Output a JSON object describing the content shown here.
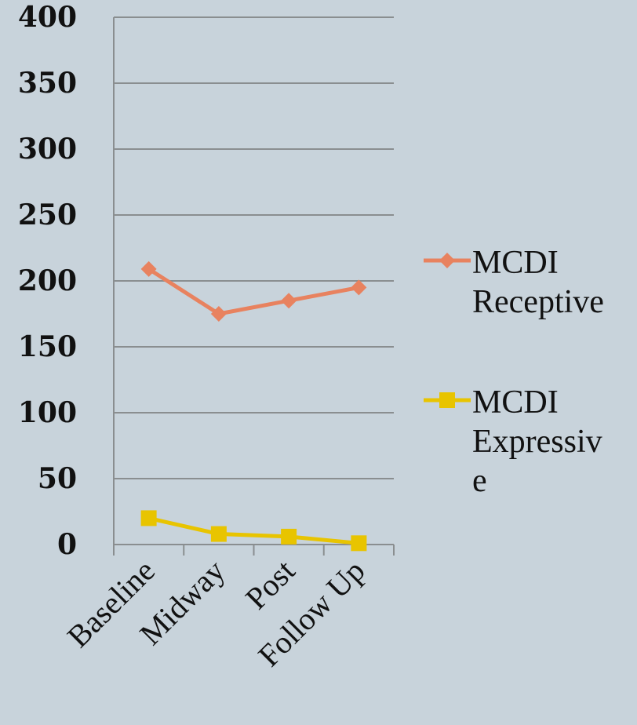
{
  "chart_data": {
    "type": "line",
    "categories": [
      "Baseline",
      "Midway",
      "Post",
      "Follow Up"
    ],
    "series": [
      {
        "name": "MCDI Receptive",
        "legend_lines": [
          "MCDI",
          "Receptive"
        ],
        "values": [
          209,
          175,
          185,
          195
        ],
        "color": "#e8825f",
        "marker": "diamond"
      },
      {
        "name": "MCDI Expressive",
        "legend_lines": [
          "MCDI",
          "Expressiv",
          "e"
        ],
        "values": [
          20,
          8,
          6,
          1
        ],
        "color": "#e8c400",
        "marker": "square"
      }
    ],
    "ylim": [
      0,
      400
    ],
    "yticks": [
      0,
      50,
      100,
      150,
      200,
      250,
      300,
      350,
      400
    ],
    "grid": true,
    "legend": "right"
  }
}
